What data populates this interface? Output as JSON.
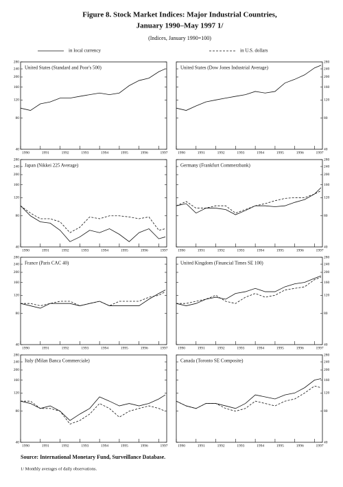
{
  "figure": {
    "title": [
      "Figure 8. Stock Market Indices: Major Industrial Countries,",
      "January 1990–May 1997 1/"
    ],
    "subtitle": "(Indices, January 1990=100)",
    "source": "Source:   International Monetary Fund, Surveillance Database.",
    "note": "1/  Monthly averages of daily observations."
  },
  "chart_data": [
    {
      "type": "line",
      "title": "United States (Standard and Poor's 500)",
      "log_scale": true,
      "ylim": [
        40,
        280
      ],
      "yticks": [
        40,
        80,
        120,
        160,
        200,
        240,
        280
      ],
      "xlim": [
        1990,
        1997.4
      ],
      "xticks": [
        1990,
        1991,
        1992,
        1993,
        1994,
        1995,
        1996,
        1997
      ],
      "x": [
        1990,
        1990.5,
        1991,
        1991.5,
        1992,
        1992.5,
        1993,
        1993.5,
        1994,
        1994.5,
        1995,
        1995.5,
        1996,
        1996.5,
        1997,
        1997.33
      ],
      "series": [
        {
          "name": "in local currency",
          "color": "#111111",
          "style": "solid",
          "values": [
            100,
            95,
            110,
            115,
            125,
            125,
            130,
            135,
            140,
            135,
            140,
            165,
            185,
            195,
            225,
            240
          ]
        }
      ]
    },
    {
      "type": "line",
      "title": "United States (Dow Jones Industrial Average)",
      "log_scale": true,
      "ylim": [
        40,
        280
      ],
      "yticks": [
        40,
        80,
        120,
        160,
        200,
        240,
        280
      ],
      "xlim": [
        1990,
        1997.4
      ],
      "xticks": [
        1990,
        1991,
        1992,
        1993,
        1994,
        1995,
        1996,
        1997
      ],
      "x": [
        1990,
        1990.5,
        1991,
        1991.5,
        1992,
        1992.5,
        1993,
        1993.5,
        1994,
        1994.5,
        1995,
        1995.5,
        1996,
        1996.5,
        1997,
        1997.33
      ],
      "series": [
        {
          "name": "in local currency",
          "color": "#111111",
          "style": "solid",
          "values": [
            100,
            95,
            105,
            115,
            120,
            125,
            130,
            135,
            145,
            140,
            145,
            175,
            190,
            210,
            245,
            260
          ]
        }
      ]
    },
    {
      "type": "line",
      "title": "Japan (Nikkei 225 Average)",
      "log_scale": true,
      "ylim": [
        40,
        280
      ],
      "yticks": [
        40,
        80,
        120,
        160,
        200,
        240,
        280
      ],
      "xlim": [
        1990,
        1997.4
      ],
      "xticks": [
        1990,
        1991,
        1992,
        1993,
        1994,
        1995,
        1996,
        1997
      ],
      "x": [
        1990,
        1990.5,
        1991,
        1991.5,
        1992,
        1992.5,
        1993,
        1993.5,
        1994,
        1994.5,
        1995,
        1995.5,
        1996,
        1996.5,
        1997,
        1997.33
      ],
      "series": [
        {
          "name": "in local currency",
          "color": "#111111",
          "style": "solid",
          "values": [
            100,
            80,
            70,
            68,
            58,
            45,
            50,
            58,
            55,
            60,
            53,
            45,
            55,
            60,
            48,
            50
          ]
        },
        {
          "name": "in U.S. dollars",
          "color": "#111111",
          "style": "dashed",
          "values": [
            100,
            85,
            75,
            75,
            70,
            55,
            62,
            78,
            75,
            80,
            80,
            78,
            75,
            78,
            58,
            60
          ]
        }
      ]
    },
    {
      "type": "line",
      "title": "Germany (Frankfurt Commerzbank)",
      "log_scale": true,
      "ylim": [
        40,
        280
      ],
      "yticks": [
        40,
        80,
        120,
        160,
        200,
        240,
        280
      ],
      "xlim": [
        1990,
        1997.4
      ],
      "xticks": [
        1990,
        1991,
        1992,
        1993,
        1994,
        1995,
        1996,
        1997
      ],
      "x": [
        1990,
        1990.5,
        1991,
        1991.5,
        1992,
        1992.5,
        1993,
        1993.5,
        1994,
        1994.5,
        1995,
        1995.5,
        1996,
        1996.5,
        1997,
        1997.33
      ],
      "series": [
        {
          "name": "in local currency",
          "color": "#111111",
          "style": "solid",
          "values": [
            100,
            105,
            85,
            95,
            95,
            92,
            82,
            90,
            100,
            100,
            98,
            100,
            108,
            115,
            130,
            150
          ]
        },
        {
          "name": "in U.S. dollars",
          "color": "#111111",
          "style": "dashed",
          "values": [
            100,
            110,
            95,
            95,
            100,
            100,
            85,
            92,
            100,
            105,
            112,
            118,
            120,
            120,
            130,
            140
          ]
        }
      ]
    },
    {
      "type": "line",
      "title": "France (Paris CAC 40)",
      "log_scale": true,
      "ylim": [
        40,
        280
      ],
      "yticks": [
        40,
        80,
        120,
        160,
        200,
        240,
        280
      ],
      "xlim": [
        1990,
        1997.4
      ],
      "xticks": [
        1990,
        1991,
        1992,
        1993,
        1994,
        1995,
        1996,
        1997
      ],
      "x": [
        1990,
        1990.5,
        1991,
        1991.5,
        1992,
        1992.5,
        1993,
        1993.5,
        1994,
        1994.5,
        1995,
        1995.5,
        1996,
        1996.5,
        1997,
        1997.33
      ],
      "series": [
        {
          "name": "in local currency",
          "color": "#111111",
          "style": "solid",
          "values": [
            100,
            95,
            90,
            100,
            100,
            100,
            95,
            100,
            105,
            95,
            95,
            95,
            95,
            110,
            125,
            135
          ]
        },
        {
          "name": "in U.S. dollars",
          "color": "#111111",
          "style": "dashed",
          "values": [
            100,
            100,
            95,
            100,
            105,
            105,
            95,
            100,
            105,
            95,
            105,
            105,
            105,
            115,
            120,
            130
          ]
        }
      ]
    },
    {
      "type": "line",
      "title": "United Kingdom (Financial Times SE 100)",
      "log_scale": true,
      "ylim": [
        40,
        280
      ],
      "yticks": [
        40,
        80,
        120,
        160,
        200,
        240,
        280
      ],
      "xlim": [
        1990,
        1997.4
      ],
      "xticks": [
        1990,
        1991,
        1992,
        1993,
        1994,
        1995,
        1996,
        1997
      ],
      "x": [
        1990,
        1990.5,
        1991,
        1991.5,
        1992,
        1992.5,
        1993,
        1993.5,
        1994,
        1994.5,
        1995,
        1995.5,
        1996,
        1996.5,
        1997,
        1997.33
      ],
      "series": [
        {
          "name": "in local currency",
          "color": "#111111",
          "style": "solid",
          "values": [
            100,
            95,
            100,
            110,
            115,
            110,
            125,
            130,
            140,
            130,
            130,
            145,
            155,
            160,
            175,
            185
          ]
        },
        {
          "name": "in U.S. dollars",
          "color": "#111111",
          "style": "dashed",
          "values": [
            100,
            100,
            105,
            110,
            120,
            105,
            100,
            115,
            125,
            115,
            120,
            135,
            140,
            145,
            170,
            180
          ]
        }
      ]
    },
    {
      "type": "line",
      "title": "Italy (Milan Banca Commerciale)",
      "log_scale": true,
      "ylim": [
        40,
        280
      ],
      "yticks": [
        40,
        80,
        120,
        160,
        200,
        240,
        280
      ],
      "xlim": [
        1990,
        1997.4
      ],
      "xticks": [
        1990,
        1991,
        1992,
        1993,
        1994,
        1995,
        1996,
        1997
      ],
      "x": [
        1990,
        1990.5,
        1991,
        1991.5,
        1992,
        1992.5,
        1993,
        1993.5,
        1994,
        1994.5,
        1995,
        1995.5,
        1996,
        1996.5,
        1997,
        1997.33
      ],
      "series": [
        {
          "name": "in local currency",
          "color": "#111111",
          "style": "solid",
          "values": [
            100,
            95,
            85,
            90,
            80,
            65,
            75,
            85,
            110,
            100,
            90,
            95,
            90,
            95,
            105,
            115
          ]
        },
        {
          "name": "in U.S. dollars",
          "color": "#111111",
          "style": "dashed",
          "values": [
            100,
            100,
            85,
            85,
            80,
            60,
            65,
            75,
            95,
            85,
            70,
            80,
            85,
            90,
            85,
            80
          ]
        }
      ]
    },
    {
      "type": "line",
      "title": "Canada (Toronto SE Composite)",
      "log_scale": true,
      "ylim": [
        40,
        280
      ],
      "yticks": [
        40,
        80,
        120,
        160,
        200,
        240,
        280
      ],
      "xlim": [
        1990,
        1997.4
      ],
      "xticks": [
        1990,
        1991,
        1992,
        1993,
        1994,
        1995,
        1996,
        1997
      ],
      "x": [
        1990,
        1990.5,
        1991,
        1991.5,
        1992,
        1992.5,
        1993,
        1993.5,
        1994,
        1994.5,
        1995,
        1995.5,
        1996,
        1996.5,
        1997,
        1997.33
      ],
      "series": [
        {
          "name": "in local currency",
          "color": "#111111",
          "style": "solid",
          "values": [
            100,
            90,
            85,
            95,
            95,
            90,
            85,
            95,
            115,
            110,
            105,
            115,
            120,
            135,
            160,
            165
          ]
        },
        {
          "name": "in U.S. dollars",
          "color": "#111111",
          "style": "dashed",
          "values": [
            100,
            90,
            85,
            95,
            95,
            85,
            80,
            85,
            100,
            95,
            90,
            100,
            105,
            120,
            140,
            135
          ]
        }
      ]
    }
  ]
}
